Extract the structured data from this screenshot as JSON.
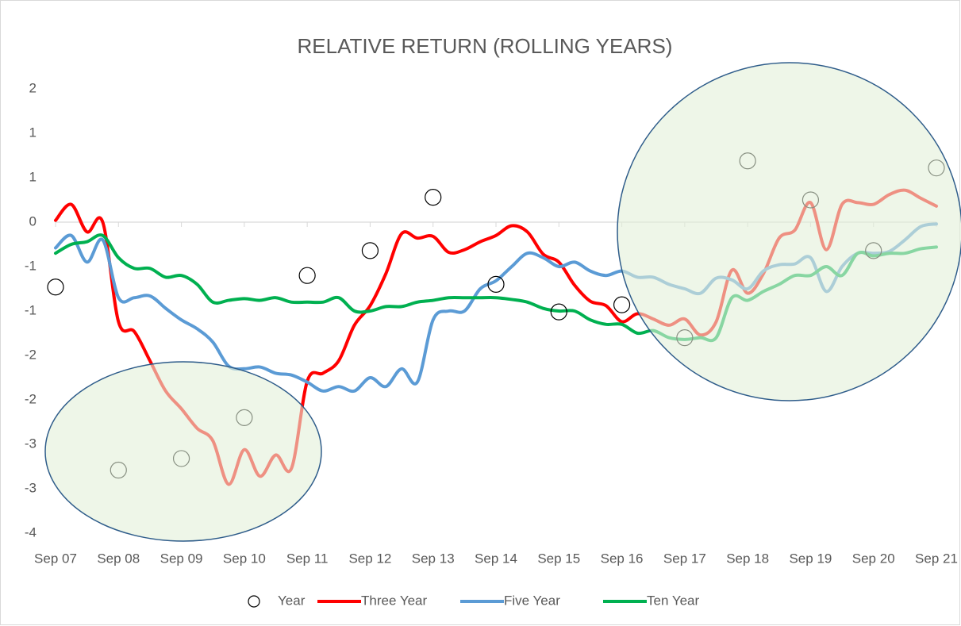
{
  "chart_data": {
    "type": "line",
    "title": "RELATIVE RETURN (ROLLING YEARS)",
    "categories": [
      "Sep 07",
      null,
      null,
      null,
      "Sep 08",
      null,
      null,
      null,
      "Sep 09",
      null,
      null,
      null,
      "Sep 10",
      null,
      null,
      null,
      "Sep 11",
      null,
      null,
      null,
      "Sep 12",
      null,
      null,
      null,
      "Sep 13",
      null,
      null,
      null,
      "Sep 14",
      null,
      null,
      null,
      "Sep 15",
      null,
      null,
      null,
      "Sep 16",
      null,
      null,
      null,
      "Sep 17",
      null,
      null,
      null,
      "Sep 18",
      null,
      null,
      null,
      "Sep 19",
      null,
      null,
      null,
      "Sep 20",
      null,
      null,
      null,
      "Sep 21"
    ],
    "series": [
      {
        "name": "Year",
        "marker": "circle",
        "color": "#000000",
        "values": [
          -0.73,
          null,
          null,
          null,
          -2.79,
          null,
          null,
          null,
          -2.66,
          null,
          null,
          null,
          -2.2,
          null,
          null,
          null,
          -0.6,
          null,
          null,
          null,
          -0.32,
          null,
          null,
          null,
          0.28,
          null,
          null,
          null,
          -0.7,
          null,
          null,
          null,
          -1.01,
          null,
          null,
          null,
          -0.93,
          null,
          null,
          null,
          -1.3,
          null,
          null,
          null,
          0.69,
          null,
          null,
          null,
          0.25,
          null,
          null,
          null,
          -0.32,
          null,
          null,
          null,
          0.61
        ]
      },
      {
        "name": "Three Year",
        "color": "#ff0000",
        "values": [
          0.02,
          0.2,
          -0.11,
          0,
          -1.12,
          -1.23,
          -1.56,
          -1.9,
          -2.1,
          -2.32,
          -2.46,
          -2.95,
          -2.56,
          -2.86,
          -2.62,
          -2.77,
          -1.79,
          -1.7,
          -1.56,
          -1.16,
          -0.94,
          -0.58,
          -0.13,
          -0.18,
          -0.16,
          -0.34,
          -0.31,
          -0.22,
          -0.15,
          -0.04,
          -0.11,
          -0.36,
          -0.45,
          -0.71,
          -0.89,
          -0.94,
          -1.12,
          -1.03,
          -1.09,
          -1.16,
          -1.09,
          -1.27,
          -1.12,
          -0.54,
          -0.8,
          -0.58,
          -0.18,
          -0.09,
          0.22,
          -0.31,
          0.2,
          0.22,
          0.2,
          0.31,
          0.36,
          0.27,
          0.18
        ]
      },
      {
        "name": "Five Year",
        "color": "#5b9bd5",
        "values": [
          -0.29,
          -0.15,
          -0.45,
          -0.2,
          -0.85,
          -0.85,
          -0.83,
          -0.97,
          -1.1,
          -1.2,
          -1.35,
          -1.62,
          -1.65,
          -1.63,
          -1.7,
          -1.72,
          -1.8,
          -1.9,
          -1.85,
          -1.9,
          -1.75,
          -1.85,
          -1.65,
          -1.8,
          -1.1,
          -1.0,
          -1.0,
          -0.75,
          -0.66,
          -0.5,
          -0.35,
          -0.4,
          -0.5,
          -0.45,
          -0.55,
          -0.6,
          -0.55,
          -0.62,
          -0.62,
          -0.7,
          -0.75,
          -0.8,
          -0.63,
          -0.65,
          -0.75,
          -0.55,
          -0.48,
          -0.47,
          -0.4,
          -0.78,
          -0.5,
          -0.35,
          -0.35,
          -0.33,
          -0.2,
          -0.05,
          -0.02
        ]
      },
      {
        "name": "Ten Year",
        "color": "#00b050",
        "values": [
          -0.35,
          -0.25,
          -0.22,
          -0.15,
          -0.4,
          -0.52,
          -0.52,
          -0.62,
          -0.6,
          -0.7,
          -0.9,
          -0.88,
          -0.86,
          -0.88,
          -0.85,
          -0.9,
          -0.9,
          -0.9,
          -0.85,
          -1.0,
          -1.0,
          -0.95,
          -0.95,
          -0.9,
          -0.88,
          -0.85,
          -0.85,
          -0.85,
          -0.85,
          -0.87,
          -0.9,
          -0.97,
          -1.0,
          -1.0,
          -1.1,
          -1.15,
          -1.15,
          -1.25,
          -1.22,
          -1.3,
          -1.32,
          -1.3,
          -1.3,
          -0.85,
          -0.88,
          -0.78,
          -0.7,
          -0.6,
          -0.6,
          -0.5,
          -0.6,
          -0.35,
          -0.38,
          -0.35,
          -0.35,
          -0.3,
          -0.28
        ]
      }
    ],
    "ylim": [
      -3.5,
      1.5
    ],
    "yticks": [
      {
        "value": 1.5,
        "label": "2"
      },
      {
        "value": 1,
        "label": "1"
      },
      {
        "value": 0.5,
        "label": "1"
      },
      0,
      {
        "value": -0.5,
        "label": "-1"
      },
      -1,
      {
        "value": -1.5,
        "label": "-2"
      },
      -2,
      {
        "value": -2.5,
        "label": "-3"
      },
      -3,
      {
        "value": -3.5,
        "label": "-4"
      }
    ],
    "grid": false,
    "legend": "bottom"
  }
}
